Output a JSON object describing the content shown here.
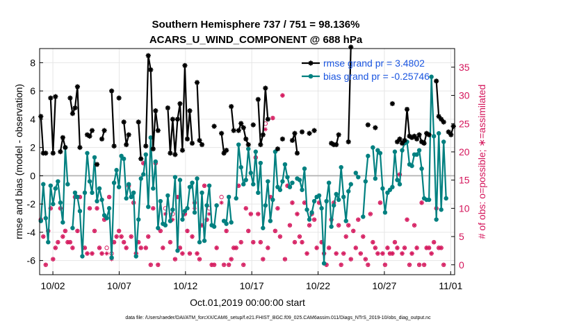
{
  "chart_data": {
    "type": "line",
    "title_line1": "Southern Hemisphere 737 / 751 = 98.136%",
    "title_line2": "ACARS_U_WIND_COMPONENT @ 688 hPa",
    "ylabel_left": "rmse and bias (model - observation)",
    "ylabel_right": "# of obs: o=possible; ∗=assimilated",
    "xlabel": "Oct.01,2019 00:00:00 start",
    "footer": "data file: /Users/raeder/DAI/ATM_forcXX/CAM6_setup/f.e21.FHIST_BGC.f09_025.CAM6assim.011/Diags_NTrS_2019-10/obs_diag_output.nc",
    "x_range_days": [
      0,
      31.3
    ],
    "x_ticks": [
      {
        "day": 1,
        "label": "10/02"
      },
      {
        "day": 6,
        "label": "10/07"
      },
      {
        "day": 11,
        "label": "10/12"
      },
      {
        "day": 16,
        "label": "10/17"
      },
      {
        "day": 21,
        "label": "10/22"
      },
      {
        "day": 26,
        "label": "10/27"
      },
      {
        "day": 31,
        "label": "11/01"
      }
    ],
    "ylim_left": [
      -7,
      9
    ],
    "y_ticks_left": [
      "-6",
      "-4",
      "-2",
      "0",
      "2",
      "4",
      "6",
      "8"
    ],
    "ylim_right": [
      -1.75,
      38.3
    ],
    "y_ticks_right": [
      "0",
      "5",
      "10",
      "15",
      "20",
      "25",
      "30",
      "35"
    ],
    "colors": {
      "rmse": "#000000",
      "bias": "#008080",
      "obs": "#d4145a",
      "zero_line": "#b3b3b3",
      "grid": "#e6e6e6",
      "legend_text": "#1a55e0"
    },
    "legend": [
      {
        "series": "rmse",
        "label": "rmse grand pr = 3.4802"
      },
      {
        "series": "bias",
        "label": "bias grand pr = -0.25746"
      }
    ],
    "series": [
      {
        "name": "rmse",
        "marker": "star",
        "values": [
          4.2,
          1.6,
          1.6,
          null,
          5.5,
          1.6,
          5.6,
          null,
          1.7,
          2.7,
          2.0,
          null,
          5.5,
          4.4,
          4.8,
          6.3,
          2.0,
          null,
          null,
          2.9,
          2.8,
          3.2,
          null,
          0.8,
          null,
          2.6,
          3.2,
          null,
          null,
          6.0,
          2.1,
          null,
          5.5,
          null,
          3.8,
          2.2,
          2.9,
          null,
          null,
          null,
          3.8,
          1.2,
          null,
          2.1,
          8.5,
          7.5,
          1.9,
          4.6,
          3.2,
          null,
          null,
          null,
          4.8,
          1.6,
          4.0,
          1.5,
          4.0,
          5.1,
          1.8,
          7.8,
          2.6,
          4.6,
          2.3,
          null,
          6.6,
          2.5,
          2.2,
          null,
          null,
          null,
          null,
          3.5,
          null,
          null,
          3.0,
          1.6,
          1.8,
          null,
          4.9,
          3.2,
          null,
          3.2,
          3.7,
          3.4,
          2.6,
          2.2,
          null,
          3.6,
          null,
          5.4,
          2.2,
          2.9,
          6.2,
          4.0,
          null,
          null,
          null,
          1.9,
          null,
          2.6,
          null,
          null,
          null,
          2.5,
          3.0,
          1.6,
          null,
          3.1,
          null,
          null,
          3.0,
          null,
          3.2,
          null,
          null,
          null,
          null,
          null,
          null,
          2.3,
          2.2,
          2.2,
          2.9,
          null,
          null,
          null,
          2.4,
          9.1,
          null,
          null,
          null,
          null,
          null,
          null,
          3.6,
          null,
          null,
          3.4,
          null,
          null,
          null,
          null,
          null,
          null,
          5.1,
          null,
          2.4,
          2.6,
          2.3,
          2.5,
          4.7,
          2.8,
          2.7,
          2.8,
          2.6,
          2.9,
          2.4,
          2.3,
          3.0,
          2.9,
          null,
          null,
          6.7,
          4.2,
          4.0,
          3.8,
          null,
          3.1,
          2.9,
          3.5
        ]
      },
      {
        "name": "bias",
        "marker": "circle",
        "values": [
          -3.2,
          -0.6,
          -3.0,
          -4.7,
          -0.7,
          -2.0,
          -0.9,
          -0.4,
          -1.9,
          -3.3,
          2.0,
          -0.6,
          null,
          -3.7,
          -1.2,
          -1.5,
          -2.5,
          -5.7,
          -1.2,
          1.6,
          -0.4,
          -1.2,
          1.3,
          -1.8,
          -0.9,
          -1.7,
          -2.8,
          -3.0,
          -2.3,
          -5.8,
          -0.5,
          0.4,
          -0.8,
          1.4,
          1.2,
          -1.6,
          -0.6,
          -1.5,
          -1.2,
          -5.7,
          -3.1,
          -0.2,
          0.1,
          1.5,
          -2.2,
          2.7,
          -0.9,
          1.0,
          -3.7,
          -1.8,
          -3.4,
          -3.5,
          -1.4,
          -3.2,
          -2.4,
          -0.1,
          -5.3,
          -0.3,
          -3.1,
          -2.5,
          -2.3,
          -0.8,
          -0.5,
          -2.6,
          -0.2,
          -4.7,
          -1.2,
          -4.6,
          -2.1,
          -0.7,
          -3.5,
          -3.6,
          -2.1,
          null,
          null,
          -3.2,
          -3.4,
          -1.5,
          -3.3,
          null,
          -1.6,
          2.2,
          0.6,
          -0.6,
          -0.3,
          1.9,
          0.2,
          -0.6,
          1.7,
          -1.2,
          0.9,
          -3.7,
          -2.1,
          -0.4,
          -3.2,
          -1.7,
          1.7,
          -0.8,
          -1.0,
          -0.4,
          0.8,
          -0.1,
          -0.8,
          -0.5,
          null,
          -0.2,
          -0.3,
          -1.0,
          0.5,
          -2.4,
          -3.1,
          -2.6,
          -1.8,
          -1.5,
          -1.4,
          -2.3,
          -6.2,
          -1.8,
          -0.5,
          -3.6,
          -2.1,
          -1.3,
          -1.7,
          0.6,
          -1.5,
          -3.2,
          -1.1,
          -0.6,
          null,
          0.2,
          -0.1,
          null,
          -2.9,
          -0.4,
          1.4,
          null,
          2.0,
          -0.2,
          1.8,
          1.6,
          -0.9,
          -2.6,
          -1.2,
          -1.0,
          -0.8,
          1.7,
          -0.3,
          -0.6,
          1.8,
          2.3,
          2.4,
          0.8,
          0.7,
          1.5,
          1.5,
          1.8,
          0.5,
          -1.6,
          -1.7,
          -1.7,
          7.0,
          2.8,
          -3.1,
          3.0,
          -2.4,
          2.4,
          -1.6
        ]
      },
      {
        "name": "obs_possible",
        "marker": "circle-open",
        "values": [
          8,
          5,
          0,
          6,
          10,
          1,
          3,
          4,
          10,
          5,
          6,
          4,
          4,
          3,
          12,
          6,
          12,
          null,
          3,
          2,
          10,
          2,
          6,
          10,
          3,
          2,
          8,
          3,
          12,
          2,
          4,
          5,
          6,
          5,
          4,
          3,
          14,
          5,
          11,
          2,
          4,
          3,
          18,
          3,
          5,
          0,
          10,
          18,
          0,
          6,
          3,
          10,
          null,
          4,
          9,
          1,
          12,
          3,
          2,
          9,
          6,
          2,
          5,
          11,
          2,
          1,
          7,
          14,
          8,
          10,
          0,
          0,
          3,
          null,
          12,
          0,
          6,
          0,
          1,
          3,
          3,
          14,
          4,
          0,
          10,
          6,
          9,
          4,
          19,
          9,
          4,
          1,
          25,
          3,
          12,
          26,
          6,
          10,
          5,
          30,
          1,
          14,
          7,
          11,
          4,
          9,
          5,
          4,
          11,
          2,
          7,
          9,
          8,
          3,
          11,
          4,
          2,
          0,
          3,
          8,
          11,
          2,
          7,
          0,
          2,
          5,
          7,
          1,
          6,
          3,
          8,
          2,
          5,
          1,
          0,
          9,
          4,
          3,
          2,
          11,
          2,
          0,
          3,
          2,
          2,
          4,
          3,
          16,
          2,
          3,
          8,
          0,
          2,
          7,
          3,
          0,
          11,
          0,
          3,
          3,
          2,
          4,
          10,
          3,
          3,
          0
        ]
      },
      {
        "name": "obs_assimilated",
        "marker": "star",
        "values": [
          8,
          5,
          0,
          6,
          10,
          1,
          3,
          4,
          10,
          5,
          6,
          4,
          4,
          3,
          12,
          6,
          12,
          null,
          3,
          2,
          10,
          2,
          6,
          10,
          3,
          2,
          8,
          2,
          12,
          1,
          4,
          5,
          6,
          5,
          4,
          3,
          14,
          5,
          11,
          2,
          4,
          3,
          18,
          3,
          5,
          0,
          10,
          18,
          0,
          6,
          3,
          9,
          null,
          4,
          8,
          1,
          12,
          3,
          2,
          9,
          6,
          2,
          5,
          10,
          2,
          1,
          7,
          14,
          8,
          9,
          0,
          0,
          3,
          null,
          11,
          0,
          6,
          0,
          1,
          3,
          3,
          14,
          4,
          0,
          10,
          6,
          9,
          4,
          19,
          9,
          4,
          1,
          24,
          3,
          12,
          26,
          6,
          10,
          5,
          30,
          1,
          14,
          7,
          11,
          4,
          9,
          5,
          4,
          11,
          2,
          7,
          9,
          8,
          3,
          11,
          4,
          2,
          0,
          3,
          8,
          11,
          2,
          7,
          0,
          2,
          5,
          7,
          1,
          6,
          3,
          8,
          2,
          5,
          1,
          0,
          9,
          4,
          3,
          2,
          11,
          2,
          0,
          3,
          2,
          2,
          4,
          3,
          16,
          2,
          3,
          8,
          0,
          2,
          7,
          3,
          0,
          11,
          0,
          3,
          3,
          2,
          4,
          10,
          3,
          3,
          0
        ]
      }
    ]
  }
}
